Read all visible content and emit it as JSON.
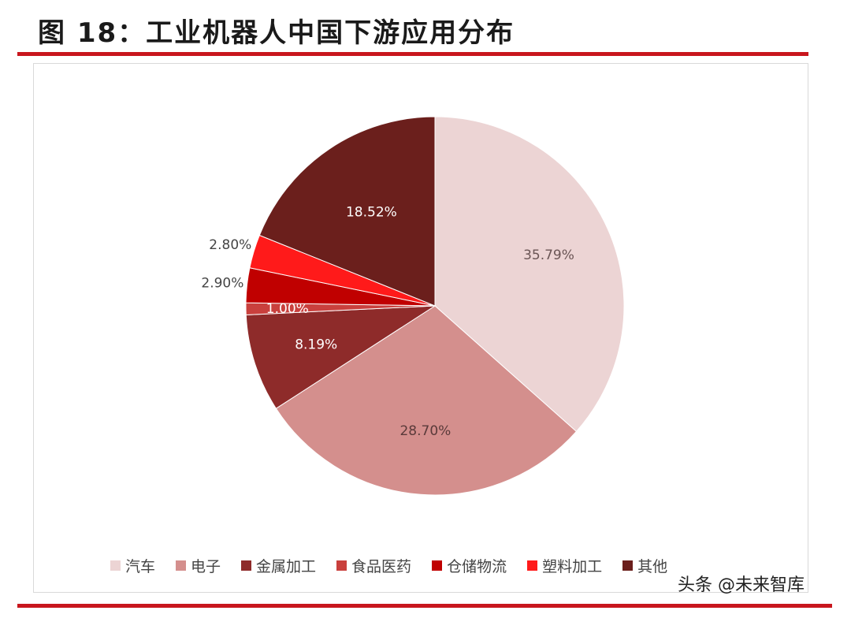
{
  "page": {
    "title": "图 18：工业机器人中国下游应用分布",
    "watermark": "头条 @未来智库"
  },
  "chart_data": {
    "type": "pie",
    "title": "",
    "slices": [
      {
        "label": "汽车",
        "value": 35.79,
        "display": "35.79%",
        "color": "#ecd4d4",
        "text_color": "#6a5555"
      },
      {
        "label": "电子",
        "value": 28.7,
        "display": "28.70%",
        "color": "#d48f8d",
        "text_color": "#5a3a3a"
      },
      {
        "label": "金属加工",
        "value": 8.19,
        "display": "8.19%",
        "color": "#8e2b2a",
        "text_color": "#ffffff"
      },
      {
        "label": "食品医药",
        "value": 1.0,
        "display": "1.00%",
        "color": "#c9403d",
        "text_color": "#ffffff"
      },
      {
        "label": "仓储物流",
        "value": 2.9,
        "display": "2.90%",
        "color": "#c00000",
        "text_color": "#444444"
      },
      {
        "label": "塑料加工",
        "value": 2.8,
        "display": "2.80%",
        "color": "#ff1a1a",
        "text_color": "#444444"
      },
      {
        "label": "其他",
        "value": 18.52,
        "display": "18.52%",
        "color": "#6b1f1c",
        "text_color": "#ffffff"
      }
    ],
    "legend_position": "bottom"
  }
}
